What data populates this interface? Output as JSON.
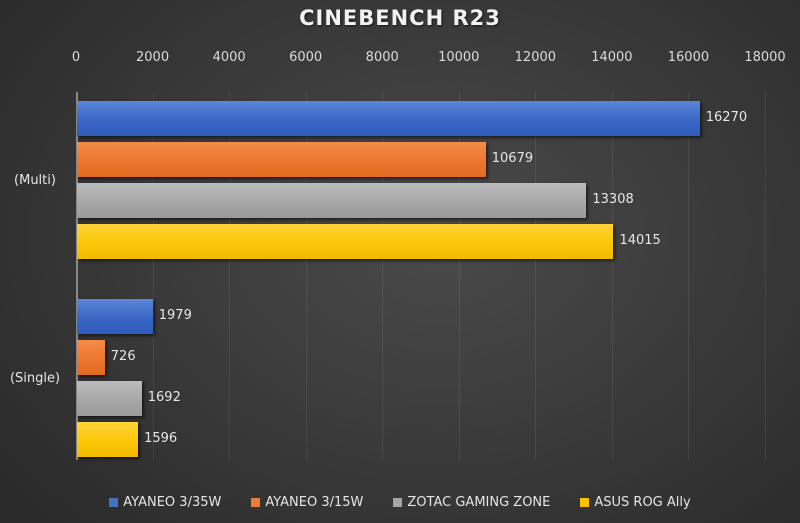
{
  "chart_data": {
    "type": "bar",
    "orientation": "horizontal",
    "title": "CINEBENCH R23",
    "categories": [
      "(Multi)",
      "(Single)"
    ],
    "series": [
      {
        "name": "AYANEO 3/35W",
        "color": "#4472c4",
        "values": [
          16270,
          1979
        ]
      },
      {
        "name": "AYANEO 3/15W",
        "color": "#ed7d31",
        "values": [
          10679,
          726
        ]
      },
      {
        "name": "ZOTAC GAMING ZONE",
        "color": "#a5a5a5",
        "values": [
          13308,
          1692
        ]
      },
      {
        "name": "ASUS ROG Ally",
        "color": "#ffc000",
        "values": [
          14015,
          1596
        ]
      }
    ],
    "xlabel": "",
    "ylabel": "",
    "xlim": [
      0,
      18000
    ],
    "x_ticks": [
      "0",
      "2000",
      "4000",
      "6000",
      "8000",
      "10000",
      "12000",
      "14000",
      "16000",
      "18000"
    ],
    "x_axis_position": "top",
    "grid": true,
    "data_labels": true,
    "legend_position": "bottom"
  },
  "labels": {
    "multi": {
      "blue": "16270",
      "orange": "10679",
      "gray": "13308",
      "yellow": "14015"
    },
    "single": {
      "blue": "1979",
      "orange": "726",
      "gray": "1692",
      "yellow": "1596"
    }
  }
}
